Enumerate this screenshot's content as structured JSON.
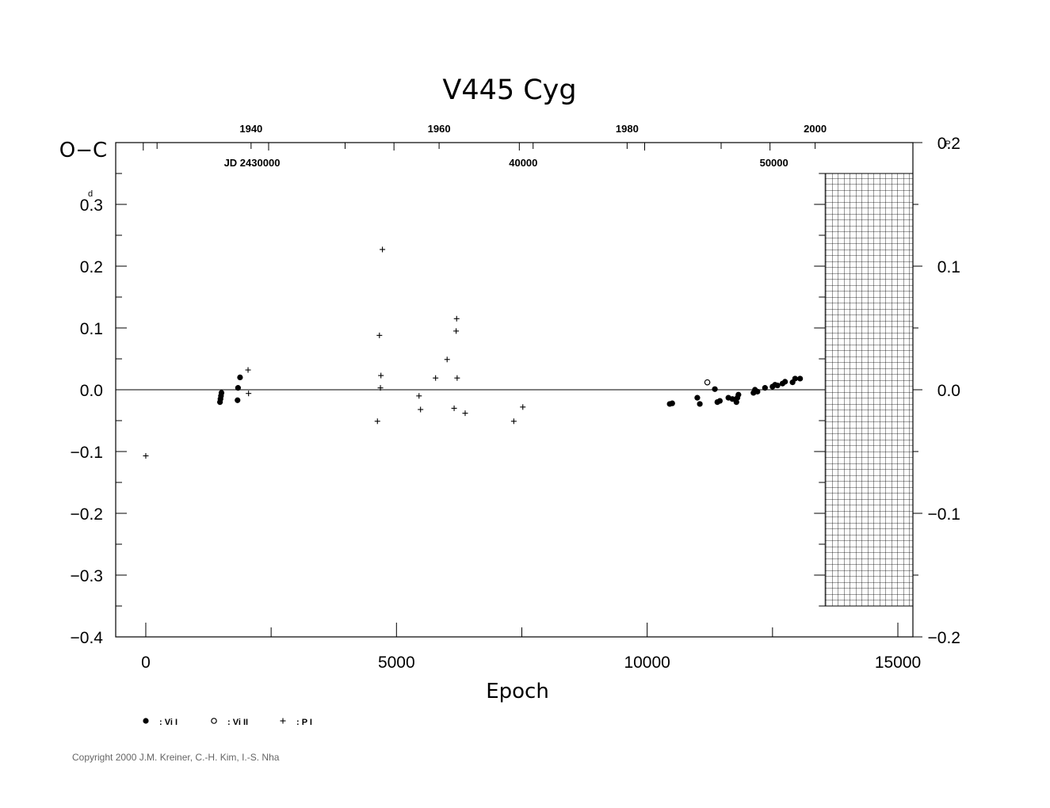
{
  "chart_data": {
    "type": "scatter",
    "title": "V445  Cyg",
    "xlabel": "Epoch",
    "ylabel": "O−C",
    "ylabel_unit": "d",
    "y2label_unit": "P",
    "xlim": [
      -600,
      15300
    ],
    "ylim": [
      -0.4,
      0.4
    ],
    "y2lim": [
      -0.2,
      0.2
    ],
    "grid": false,
    "x_ticks": [
      0,
      5000,
      10000,
      15000
    ],
    "x_tick_labels": [
      "0",
      "5000",
      "10000",
      "15000"
    ],
    "y_ticks": [
      -0.4,
      -0.3,
      -0.2,
      -0.1,
      0.0,
      0.1,
      0.2,
      0.3
    ],
    "y_tick_labels": [
      "−0.4",
      "−0.3",
      "−0.2",
      "−0.1",
      "0.0",
      "0.1",
      "0.2",
      "0.3"
    ],
    "y2_ticks": [
      -0.2,
      -0.1,
      0.0,
      0.1,
      0.2
    ],
    "y2_tick_labels": [
      "−0.2",
      "−0.1",
      "0.0",
      "0.1",
      "0.2"
    ],
    "top_year_ticks": [
      1940,
      1960,
      1980,
      2000
    ],
    "top_year_epochs": [
      2100,
      5850,
      9600,
      13350
    ],
    "top_jd_label": "JD  2430000",
    "top_jd_ticks": [
      40000,
      50000
    ],
    "top_jd_epochs": [
      7450,
      12450
    ],
    "future_region_start": 13550,
    "legend": [
      {
        "marker": "filled-circle",
        "label": ": Vi I"
      },
      {
        "marker": "open-circle",
        "label": ": Vi II"
      },
      {
        "marker": "plus",
        "label": ": P I"
      }
    ],
    "series": [
      {
        "name": "Vi I",
        "marker": "filled-circle",
        "points": [
          [
            1480,
            -0.02
          ],
          [
            1490,
            -0.015
          ],
          [
            1500,
            -0.01
          ],
          [
            1510,
            -0.005
          ],
          [
            1830,
            -0.017
          ],
          [
            1840,
            0.003
          ],
          [
            1880,
            0.02
          ],
          [
            10450,
            -0.023
          ],
          [
            10500,
            -0.022
          ],
          [
            11000,
            -0.013
          ],
          [
            11050,
            -0.023
          ],
          [
            11350,
            0.001
          ],
          [
            11400,
            -0.02
          ],
          [
            11450,
            -0.018
          ],
          [
            11620,
            -0.013
          ],
          [
            11700,
            -0.015
          ],
          [
            11780,
            -0.02
          ],
          [
            11800,
            -0.013
          ],
          [
            11820,
            -0.008
          ],
          [
            12120,
            -0.005
          ],
          [
            12150,
            0.0
          ],
          [
            12200,
            -0.003
          ],
          [
            12350,
            0.003
          ],
          [
            12500,
            0.005
          ],
          [
            12550,
            0.008
          ],
          [
            12600,
            0.007
          ],
          [
            12700,
            0.01
          ],
          [
            12750,
            0.013
          ],
          [
            12900,
            0.012
          ],
          [
            12950,
            0.018
          ],
          [
            13050,
            0.018
          ]
        ]
      },
      {
        "name": "Vi II",
        "marker": "open-circle",
        "points": [
          [
            11200,
            0.012
          ]
        ]
      },
      {
        "name": "P I",
        "marker": "plus",
        "points": [
          [
            0,
            -0.107
          ],
          [
            2040,
            0.032
          ],
          [
            2050,
            -0.006
          ],
          [
            4620,
            -0.051
          ],
          [
            4660,
            0.088
          ],
          [
            4680,
            0.003
          ],
          [
            4690,
            0.023
          ],
          [
            4720,
            0.227
          ],
          [
            5450,
            -0.01
          ],
          [
            5480,
            -0.032
          ],
          [
            5780,
            0.019
          ],
          [
            6010,
            0.049
          ],
          [
            6150,
            -0.03
          ],
          [
            6190,
            0.095
          ],
          [
            6200,
            0.115
          ],
          [
            6210,
            0.019
          ],
          [
            6370,
            -0.038
          ],
          [
            7340,
            -0.051
          ],
          [
            7520,
            -0.028
          ]
        ]
      }
    ]
  },
  "copyright": "Copyright 2000 J.M. Kreiner, C.-H. Kim, I.-S. Nha"
}
